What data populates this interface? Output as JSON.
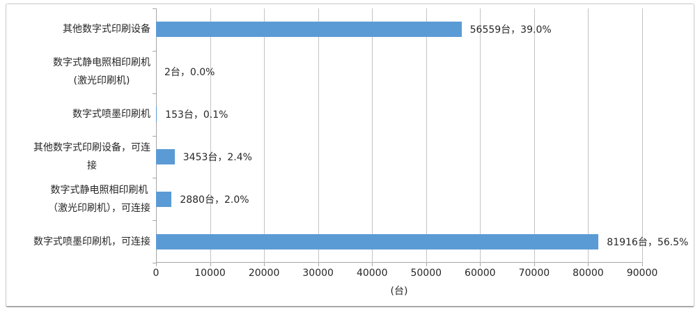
{
  "chart_data": {
    "type": "bar",
    "orientation": "horizontal",
    "title": "",
    "categories": [
      "其他数字式印刷设备",
      "数字式静电照相印刷机\n(激光印刷机)",
      "数字式喷墨印刷机",
      "其他数字式印刷设备，可连\n接",
      "数字式静电照相印刷机\n（激光印刷机），可连接",
      "数字式喷墨印刷机，可连接"
    ],
    "values": [
      56559,
      2,
      153,
      3453,
      2880,
      81916
    ],
    "percentages": [
      39.0,
      0.0,
      0.1,
      2.4,
      2.0,
      56.5
    ],
    "data_labels": [
      "56559台，39.0%",
      "2台，0.0%",
      "153台，0.1%",
      "3453台，2.4%",
      "2880台，2.0%",
      "81916台，56.5%"
    ],
    "xlabel": "(台)",
    "xlim": [
      0,
      90000
    ],
    "xticks": [
      0,
      10000,
      20000,
      30000,
      40000,
      50000,
      60000,
      70000,
      80000,
      90000
    ],
    "legend": false,
    "grid": true,
    "bar_color": "#5B9BD5",
    "gridline_color": "#c3c3c3",
    "axis_color": "#a6a6a6",
    "text_color": "#262626"
  }
}
